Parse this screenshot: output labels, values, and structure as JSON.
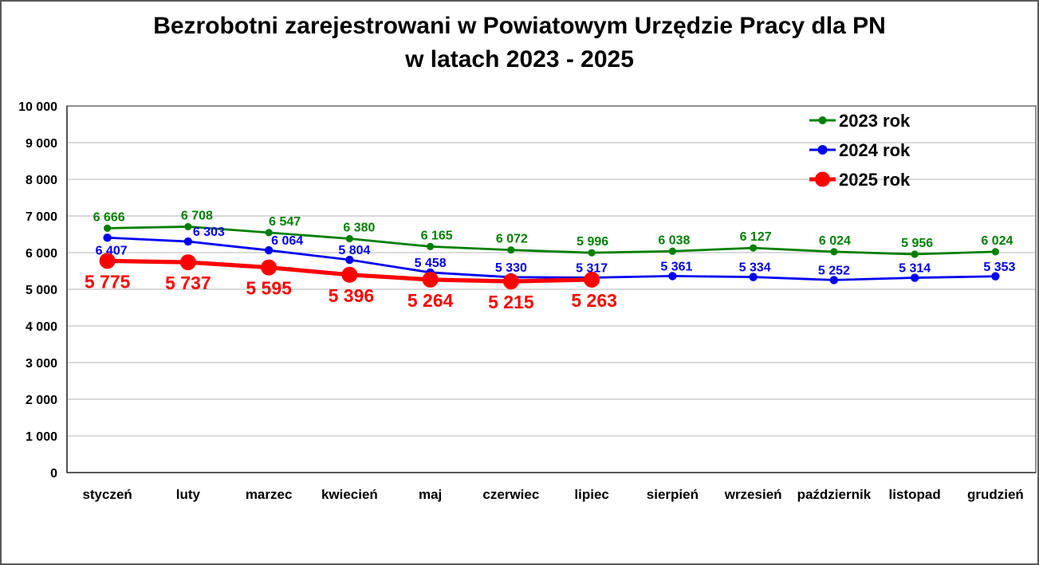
{
  "title": {
    "line1": "Bezrobotni zarejestrowani w Powiatowym Urzędzie Pracy dla PN",
    "line2": "w latach 2023 - 2025"
  },
  "chart_data": {
    "type": "line",
    "title": "Bezrobotni zarejestrowani w Powiatowym Urzędzie Pracy dla PN w latach 2023 - 2025",
    "categories": [
      "styczeń",
      "luty",
      "marzec",
      "kwiecień",
      "maj",
      "czerwiec",
      "lipiec",
      "sierpień",
      "wrzesień",
      "październik",
      "listopad",
      "grudzień"
    ],
    "series": [
      {
        "name": "2023 rok",
        "color": "#008000",
        "values": [
          6666,
          6708,
          6547,
          6380,
          6165,
          6072,
          5996,
          6038,
          6127,
          6024,
          5956,
          6024
        ]
      },
      {
        "name": "2024 rok",
        "color": "#0000f2",
        "values": [
          6407,
          6303,
          6064,
          5804,
          5458,
          5330,
          5317,
          5361,
          5334,
          5252,
          5314,
          5353
        ]
      },
      {
        "name": "2025 rok",
        "color": "#fe0000",
        "values": [
          5775,
          5737,
          5595,
          5396,
          5264,
          5215,
          5263
        ]
      }
    ],
    "ylim": [
      0,
      10000
    ],
    "ytick_step": 1000,
    "ytick_labels": [
      "0",
      "1 000",
      "2 000",
      "3 000",
      "4 000",
      "5 000",
      "6 000",
      "7 000",
      "8 000",
      "9 000",
      "10 000"
    ],
    "grid": true,
    "data_labels": true,
    "legend_position": "inside-top-right",
    "colors": {
      "axis_text": "#000000",
      "gridline": "#c3c3c3",
      "plot_border": "#737373",
      "axis_line": "#3f3f3f"
    }
  }
}
